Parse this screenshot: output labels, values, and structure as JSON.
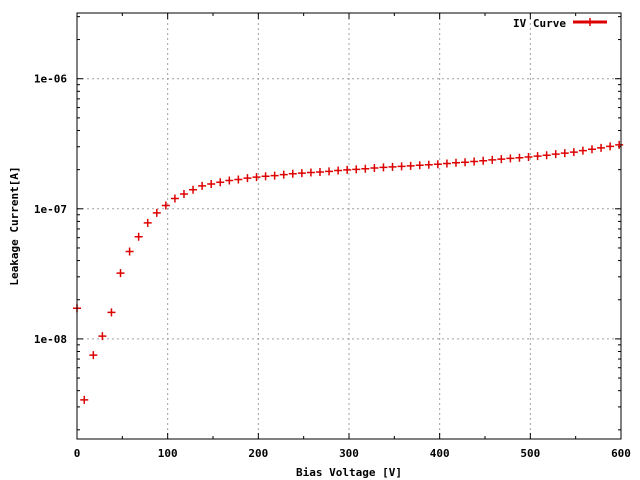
{
  "chart_data": {
    "type": "scatter",
    "title": "",
    "xlabel": "Bias Voltage [V]",
    "ylabel": "Leakage Current[A]",
    "xlim": [
      0,
      600
    ],
    "ylim": [
      1.7e-09,
      3.2e-06
    ],
    "yscale": "log",
    "grid": true,
    "legend_position": "top-right",
    "x_ticks": [
      0,
      100,
      200,
      300,
      400,
      500,
      600
    ],
    "x_tick_labels": [
      "0",
      "100",
      "200",
      "300",
      "400",
      "500",
      "600"
    ],
    "y_ticks": [
      1e-08,
      1e-07,
      1e-06
    ],
    "y_tick_labels": [
      "1e-08",
      "1e-07",
      "1e-06"
    ],
    "series": [
      {
        "name": "IV Curve",
        "color": "#dd0000",
        "marker": "plus",
        "x": [
          0,
          8,
          18,
          28,
          38,
          48,
          58,
          68,
          78,
          88,
          98,
          108,
          118,
          128,
          138,
          148,
          158,
          168,
          178,
          188,
          198,
          208,
          218,
          228,
          238,
          248,
          258,
          268,
          278,
          288,
          298,
          308,
          318,
          328,
          338,
          348,
          358,
          368,
          378,
          388,
          398,
          408,
          418,
          428,
          438,
          448,
          458,
          468,
          478,
          488,
          498,
          508,
          518,
          528,
          538,
          548,
          558,
          568,
          578,
          588,
          598
        ],
        "y": [
          1.72e-08,
          3.4e-09,
          7.5e-09,
          1.05e-08,
          1.6e-08,
          3.2e-08,
          4.7e-08,
          6.1e-08,
          7.8e-08,
          9.3e-08,
          1.06e-07,
          1.2e-07,
          1.3e-07,
          1.4e-07,
          1.5e-07,
          1.55e-07,
          1.6e-07,
          1.65e-07,
          1.68e-07,
          1.72e-07,
          1.75e-07,
          1.78e-07,
          1.8e-07,
          1.83e-07,
          1.86e-07,
          1.88e-07,
          1.9e-07,
          1.92e-07,
          1.94e-07,
          1.97e-07,
          1.99e-07,
          2.01e-07,
          2.03e-07,
          2.06e-07,
          2.08e-07,
          2.1e-07,
          2.12e-07,
          2.14e-07,
          2.16e-07,
          2.18e-07,
          2.2e-07,
          2.23e-07,
          2.26e-07,
          2.28e-07,
          2.31e-07,
          2.34e-07,
          2.38e-07,
          2.41e-07,
          2.44e-07,
          2.47e-07,
          2.5e-07,
          2.54e-07,
          2.58e-07,
          2.63e-07,
          2.68e-07,
          2.73e-07,
          2.8e-07,
          2.87e-07,
          2.94e-07,
          3.02e-07,
          3.1e-07
        ]
      }
    ]
  }
}
